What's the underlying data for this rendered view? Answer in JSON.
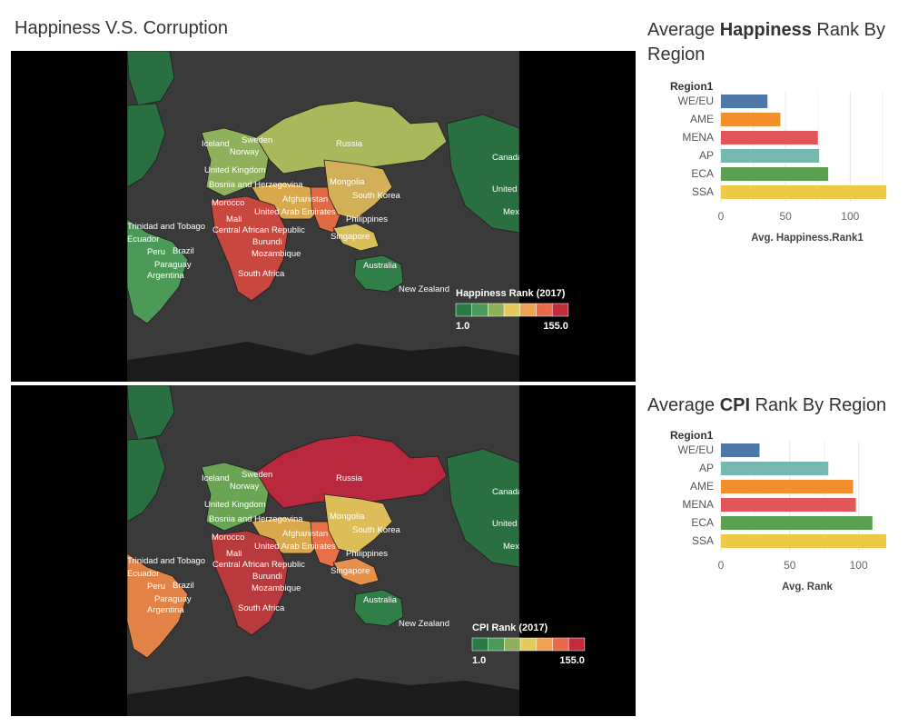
{
  "dashboard": {
    "title": "Happiness V.S. Corruption"
  },
  "maps": [
    {
      "legend_title": "Happiness Rank (2017)",
      "legend_min": "1.0",
      "legend_max": "155.0",
      "scale_colors": [
        "#2a7a45",
        "#4d9a58",
        "#8fb15c",
        "#e6cb5c",
        "#f1a250",
        "#e8694a",
        "#c42c3c"
      ],
      "regions": {
        "north_america": "#2a6f40",
        "south_america": "#4d9a58",
        "europe": "#8fb15c",
        "russia": "#a8b85a",
        "middle_east": "#d9a84c",
        "africa": "#c8473e",
        "south_asia": "#e06a43",
        "east_asia": "#d2b057",
        "se_asia": "#d9bf59",
        "australia": "#2f7f47",
        "greenland": "#2a6f40"
      }
    },
    {
      "legend_title": "CPI Rank (2017)",
      "legend_min": "1.0",
      "legend_max": "155.0",
      "scale_colors": [
        "#2a7a45",
        "#4d9a58",
        "#8fb15c",
        "#e6cb5c",
        "#f1a250",
        "#e8694a",
        "#c42c3c"
      ],
      "regions": {
        "north_america": "#2a6f40",
        "south_america": "#e28246",
        "europe": "#6aa556",
        "russia": "#b9283d",
        "middle_east": "#d9a84c",
        "africa": "#b93a3c",
        "south_asia": "#e87046",
        "east_asia": "#dcbd57",
        "se_asia": "#e6904a",
        "australia": "#2f7f47",
        "greenland": "#2a6f40"
      }
    }
  ],
  "country_labels": [
    "Iceland",
    "Sweden",
    "Norway",
    "Russia",
    "Canada",
    "United Kingdom",
    "Bosnia and Herzegovina",
    "Mongolia",
    "United States",
    "Morocco",
    "Afghanistan",
    "South Korea",
    "Mexico",
    "Mali",
    "United Arab Emirates",
    "Philippines",
    "Trinidad and Tobago",
    "Central African Republic",
    "Ecuador",
    "Burundi",
    "Singapore",
    "Peru",
    "Brazil",
    "Mozambique",
    "Paraguay",
    "Argentina",
    "South Africa",
    "Australia",
    "New Zealand"
  ],
  "chart_data": [
    {
      "type": "bar",
      "orientation": "horizontal",
      "title_prefix": "Average ",
      "title_bold": "Happiness",
      "title_suffix": " Rank By Region",
      "legend_label": "Region1",
      "categories": [
        "WE/EU",
        "AME",
        "MENA",
        "AP",
        "ECA",
        "SSA"
      ],
      "values": [
        36,
        46,
        75,
        76,
        83,
        128
      ],
      "colors": [
        "#4e79a7",
        "#f28e2b",
        "#e15759",
        "#76b7b2",
        "#59a14f",
        "#edc948"
      ],
      "xlabel": "Avg. Happiness.Rank1",
      "xticks": [
        0,
        50,
        100
      ],
      "xlim": [
        0,
        130
      ],
      "grid": true
    },
    {
      "type": "bar",
      "orientation": "horizontal",
      "title_prefix": "Average ",
      "title_bold": "CPI",
      "title_suffix": " Rank By Region",
      "legend_label": "Region1",
      "categories": [
        "WE/EU",
        "AP",
        "AME",
        "MENA",
        "ECA",
        "SSA"
      ],
      "values": [
        28,
        78,
        96,
        98,
        110,
        120
      ],
      "colors": [
        "#4e79a7",
        "#76b7b2",
        "#f28e2b",
        "#e15759",
        "#59a14f",
        "#edc948"
      ],
      "xlabel": "Avg. Rank",
      "xticks": [
        0,
        50,
        100
      ],
      "xlim": [
        0,
        122
      ],
      "grid": true
    }
  ]
}
